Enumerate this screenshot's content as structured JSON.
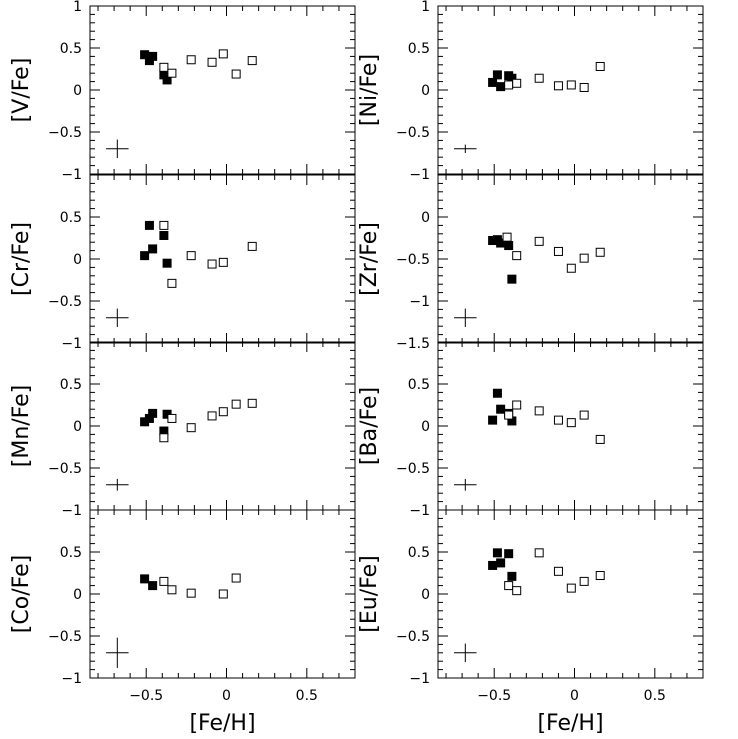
{
  "chart_data": [
    {
      "type": "scatter",
      "ylabel": "[V/Fe]",
      "xlabel": "",
      "xlim": [
        -0.85,
        0.8
      ],
      "ylim": [
        -1,
        1
      ],
      "yticks": [
        -1,
        -0.5,
        0,
        0.5,
        1
      ],
      "yticklabels": [
        "−1",
        "−0.5",
        "0",
        "0.5",
        "1"
      ],
      "series": [
        {
          "marker": "filled-square",
          "points": [
            [
              -0.51,
              0.42
            ],
            [
              -0.48,
              0.35
            ],
            [
              -0.46,
              0.4
            ],
            [
              -0.39,
              0.18
            ],
            [
              -0.37,
              0.12
            ]
          ]
        },
        {
          "marker": "open-square",
          "points": [
            [
              -0.39,
              0.27
            ],
            [
              -0.34,
              0.2
            ],
            [
              -0.22,
              0.36
            ],
            [
              -0.09,
              0.33
            ],
            [
              -0.02,
              0.43
            ],
            [
              0.06,
              0.19
            ],
            [
              0.16,
              0.35
            ]
          ]
        }
      ],
      "error_bar": {
        "x": -0.68,
        "y": -0.7,
        "dx": 0.07,
        "dy": 0.11
      }
    },
    {
      "type": "scatter",
      "ylabel": "[Ni/Fe]",
      "xlabel": "",
      "xlim": [
        -0.85,
        0.8
      ],
      "ylim": [
        -1,
        1
      ],
      "yticks": [
        -1,
        -0.5,
        0,
        0.5,
        1
      ],
      "yticklabels": [
        "−1",
        "−0.5",
        "0",
        "0.5",
        "1"
      ],
      "series": [
        {
          "marker": "filled-square",
          "points": [
            [
              -0.51,
              0.09
            ],
            [
              -0.48,
              0.18
            ],
            [
              -0.46,
              0.04
            ],
            [
              -0.41,
              0.17
            ],
            [
              -0.39,
              0.14
            ]
          ]
        },
        {
          "marker": "open-square",
          "points": [
            [
              -0.41,
              0.06
            ],
            [
              -0.36,
              0.08
            ],
            [
              -0.22,
              0.14
            ],
            [
              -0.1,
              0.05
            ],
            [
              -0.02,
              0.06
            ],
            [
              0.06,
              0.03
            ],
            [
              0.16,
              0.28
            ]
          ]
        }
      ],
      "error_bar": {
        "x": -0.68,
        "y": -0.7,
        "dx": 0.07,
        "dy": 0.05
      }
    },
    {
      "type": "scatter",
      "ylabel": "[Cr/Fe]",
      "xlabel": "",
      "xlim": [
        -0.85,
        0.8
      ],
      "ylim": [
        -1,
        1
      ],
      "yticks": [
        -1,
        -0.5,
        0,
        0.5
      ],
      "yticklabels": [
        "−1",
        "−0.5",
        "0",
        "0.5"
      ],
      "series": [
        {
          "marker": "filled-square",
          "points": [
            [
              -0.51,
              0.04
            ],
            [
              -0.48,
              0.4
            ],
            [
              -0.46,
              0.12
            ],
            [
              -0.39,
              0.28
            ],
            [
              -0.37,
              -0.05
            ]
          ]
        },
        {
          "marker": "open-square",
          "points": [
            [
              -0.39,
              0.4
            ],
            [
              -0.34,
              -0.29
            ],
            [
              -0.22,
              0.04
            ],
            [
              -0.09,
              -0.06
            ],
            [
              -0.02,
              -0.04
            ],
            [
              0.16,
              0.15
            ]
          ]
        }
      ],
      "error_bar": {
        "x": -0.68,
        "y": -0.7,
        "dx": 0.07,
        "dy": 0.11
      }
    },
    {
      "type": "scatter",
      "ylabel": "[Zr/Fe]",
      "xlabel": "",
      "xlim": [
        -0.85,
        0.8
      ],
      "ylim": [
        -1.5,
        0.5
      ],
      "yticks": [
        -1.5,
        -1,
        -0.5,
        0
      ],
      "yticklabels": [
        "−1.5",
        "−1",
        "−0.5",
        "0"
      ],
      "series": [
        {
          "marker": "filled-square",
          "points": [
            [
              -0.51,
              -0.28
            ],
            [
              -0.48,
              -0.27
            ],
            [
              -0.46,
              -0.31
            ],
            [
              -0.41,
              -0.34
            ],
            [
              -0.39,
              -0.74
            ]
          ]
        },
        {
          "marker": "open-square",
          "points": [
            [
              -0.42,
              -0.24
            ],
            [
              -0.36,
              -0.46
            ],
            [
              -0.22,
              -0.29
            ],
            [
              -0.1,
              -0.41
            ],
            [
              -0.02,
              -0.61
            ],
            [
              0.06,
              -0.49
            ],
            [
              0.16,
              -0.42
            ]
          ]
        }
      ],
      "error_bar": {
        "x": -0.68,
        "y": -1.2,
        "dx": 0.07,
        "dy": 0.11
      }
    },
    {
      "type": "scatter",
      "ylabel": "[Mn/Fe]",
      "xlabel": "",
      "xlim": [
        -0.85,
        0.8
      ],
      "ylim": [
        -1,
        1
      ],
      "yticks": [
        -1,
        -0.5,
        0,
        0.5
      ],
      "yticklabels": [
        "−1",
        "−0.5",
        "0",
        "0.5"
      ],
      "series": [
        {
          "marker": "filled-square",
          "points": [
            [
              -0.51,
              0.05
            ],
            [
              -0.48,
              0.09
            ],
            [
              -0.46,
              0.15
            ],
            [
              -0.39,
              -0.06
            ],
            [
              -0.37,
              0.14
            ]
          ]
        },
        {
          "marker": "open-square",
          "points": [
            [
              -0.39,
              -0.14
            ],
            [
              -0.34,
              0.09
            ],
            [
              -0.22,
              -0.02
            ],
            [
              -0.09,
              0.12
            ],
            [
              -0.02,
              0.17
            ],
            [
              0.06,
              0.26
            ],
            [
              0.16,
              0.27
            ]
          ]
        }
      ],
      "error_bar": {
        "x": -0.68,
        "y": -0.7,
        "dx": 0.07,
        "dy": 0.07
      }
    },
    {
      "type": "scatter",
      "ylabel": "[Ba/Fe]",
      "xlabel": "",
      "xlim": [
        -0.85,
        0.8
      ],
      "ylim": [
        -1,
        1
      ],
      "yticks": [
        -1,
        -0.5,
        0,
        0.5
      ],
      "yticklabels": [
        "−1",
        "−0.5",
        "0",
        "0.5"
      ],
      "series": [
        {
          "marker": "filled-square",
          "points": [
            [
              -0.51,
              0.07
            ],
            [
              -0.48,
              0.39
            ],
            [
              -0.46,
              0.2
            ],
            [
              -0.41,
              0.15
            ],
            [
              -0.39,
              0.06
            ]
          ]
        },
        {
          "marker": "open-square",
          "points": [
            [
              -0.41,
              0.13
            ],
            [
              -0.36,
              0.25
            ],
            [
              -0.22,
              0.18
            ],
            [
              -0.1,
              0.07
            ],
            [
              -0.02,
              0.04
            ],
            [
              0.06,
              0.13
            ],
            [
              0.16,
              -0.16
            ]
          ]
        }
      ],
      "error_bar": {
        "x": -0.68,
        "y": -0.7,
        "dx": 0.07,
        "dy": 0.07
      }
    },
    {
      "type": "scatter",
      "ylabel": "[Co/Fe]",
      "xlabel": "[Fe/H]",
      "xlim": [
        -0.85,
        0.8
      ],
      "ylim": [
        -1,
        1
      ],
      "yticks": [
        -1,
        -0.5,
        0,
        0.5
      ],
      "yticklabels": [
        "−1",
        "−0.5",
        "0",
        "0.5"
      ],
      "xticks": [
        -0.5,
        0,
        0.5
      ],
      "xticklabels": [
        "−0.5",
        "0",
        "0.5"
      ],
      "series": [
        {
          "marker": "filled-square",
          "points": [
            [
              -0.51,
              0.18
            ],
            [
              -0.46,
              0.1
            ]
          ]
        },
        {
          "marker": "open-square",
          "points": [
            [
              -0.39,
              0.15
            ],
            [
              -0.34,
              0.05
            ],
            [
              -0.22,
              0.01
            ],
            [
              -0.02,
              0.0
            ],
            [
              0.06,
              0.19
            ]
          ]
        }
      ],
      "error_bar": {
        "x": -0.68,
        "y": -0.7,
        "dx": 0.07,
        "dy": 0.18
      }
    },
    {
      "type": "scatter",
      "ylabel": "[Eu/Fe]",
      "xlabel": "[Fe/H]",
      "xlim": [
        -0.85,
        0.8
      ],
      "ylim": [
        -1,
        1
      ],
      "yticks": [
        -1,
        -0.5,
        0,
        0.5
      ],
      "yticklabels": [
        "−1",
        "−0.5",
        "0",
        "0.5"
      ],
      "xticks": [
        -0.5,
        0,
        0.5
      ],
      "xticklabels": [
        "−0.5",
        "0",
        "0.5"
      ],
      "series": [
        {
          "marker": "filled-square",
          "points": [
            [
              -0.51,
              0.34
            ],
            [
              -0.48,
              0.49
            ],
            [
              -0.46,
              0.37
            ],
            [
              -0.41,
              0.48
            ],
            [
              -0.39,
              0.21
            ]
          ]
        },
        {
          "marker": "open-square",
          "points": [
            [
              -0.41,
              0.1
            ],
            [
              -0.36,
              0.04
            ],
            [
              -0.22,
              0.49
            ],
            [
              -0.1,
              0.27
            ],
            [
              -0.02,
              0.07
            ],
            [
              0.06,
              0.15
            ],
            [
              0.16,
              0.22
            ]
          ]
        }
      ],
      "error_bar": {
        "x": -0.68,
        "y": -0.7,
        "dx": 0.07,
        "dy": 0.11
      }
    }
  ]
}
